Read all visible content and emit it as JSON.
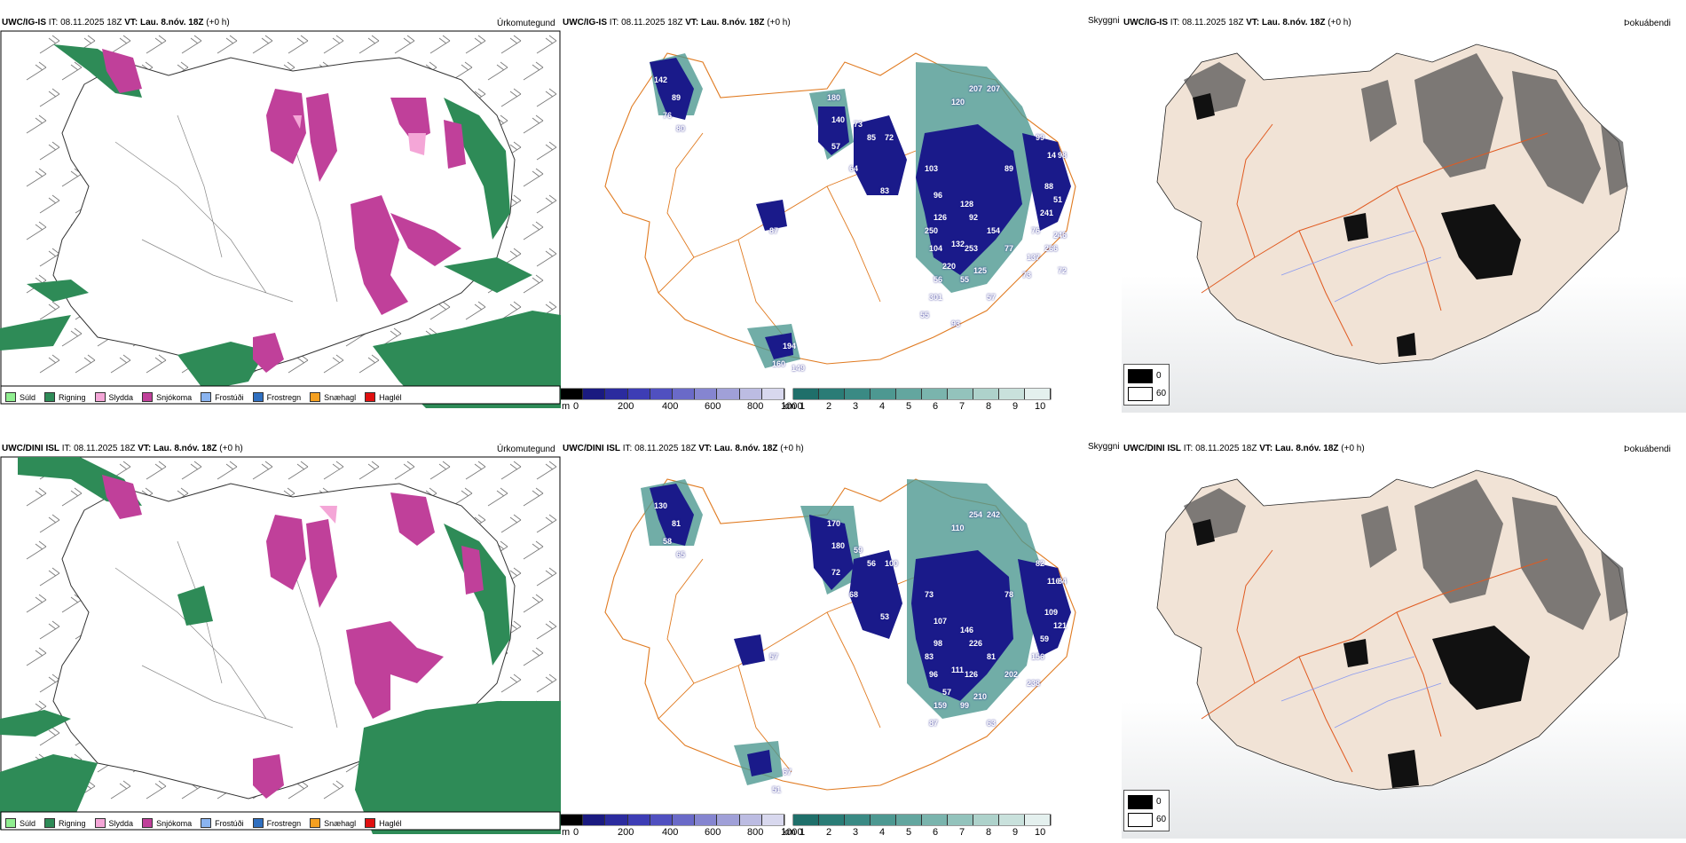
{
  "rows": [
    {
      "model": "UWC/IG-IS",
      "it": "IT: 08.11.2025 18Z",
      "vt_label": "VT:",
      "vt": "Lau. 8.nóv. 18Z",
      "offset": "(+0 h)"
    },
    {
      "model": "UWC/DINI ISL",
      "it": "IT: 08.11.2025 18Z",
      "vt_label": "VT:",
      "vt": "Lau. 8.nóv. 18Z",
      "offset": "(+0 h)"
    }
  ],
  "titles": {
    "precip": "Úrkomutegund",
    "visibility": "Skyggni",
    "fog": "Þokuábendi"
  },
  "precip_legend": [
    "Súld",
    "Rigning",
    "Slydda",
    "Snjókoma",
    "Frostúði",
    "Frostregn",
    "Snæhagl",
    "Haglél"
  ],
  "precip_colors": {
    "Súld": "#90ee90",
    "Rigning": "#2e8b57",
    "Slydda": "#f4a6d7",
    "Snjókoma": "#c0409a",
    "Frostúði": "#8ab4f0",
    "Frostregn": "#2f6fc0",
    "Snæhagl": "#f5a020",
    "Haglél": "#e01010"
  },
  "cloudbase_bar": {
    "unit": "m",
    "ticks": [
      "0",
      "200",
      "400",
      "600",
      "800",
      "1000"
    ],
    "colors": [
      "#000000",
      "#1a1a80",
      "#2b2b9e",
      "#3d3db5",
      "#5050c0",
      "#6a6ac8",
      "#8585d0",
      "#a0a0d8",
      "#bcbce2",
      "#d8d8ee"
    ]
  },
  "visibility_bar": {
    "unit": "km",
    "ticks": [
      "1",
      "2",
      "3",
      "4",
      "5",
      "6",
      "7",
      "8",
      "9",
      "10"
    ],
    "colors": [
      "#1f6f6a",
      "#2a7c76",
      "#3a8a84",
      "#4d9891",
      "#63a69f",
      "#7ab4ad",
      "#93c3bc",
      "#aed2cb",
      "#c9e1dc",
      "#e4f0ee"
    ]
  },
  "fog_legend": [
    "0",
    "60"
  ],
  "row1_labels": [
    "142",
    "89",
    "76",
    "80",
    "180",
    "140",
    "207",
    "207",
    "120",
    "73",
    "85",
    "57",
    "72",
    "99",
    "14",
    "64",
    "98",
    "103",
    "89",
    "83",
    "88",
    "96",
    "128",
    "241",
    "51",
    "92",
    "126",
    "250",
    "154",
    "76",
    "132",
    "104",
    "253",
    "77",
    "137",
    "87",
    "220",
    "125",
    "56",
    "55",
    "301",
    "57",
    "194",
    "160",
    "149",
    "246",
    "266",
    "73",
    "55",
    "93",
    "72"
  ],
  "row2_labels": [
    "130",
    "81",
    "58",
    "65",
    "170",
    "180",
    "254",
    "242",
    "110",
    "59",
    "56",
    "72",
    "100",
    "82",
    "116",
    "68",
    "84",
    "73",
    "78",
    "53",
    "109",
    "107",
    "146",
    "59",
    "121",
    "226",
    "98",
    "83",
    "81",
    "156",
    "111",
    "96",
    "126",
    "202",
    "238",
    "57",
    "57",
    "210",
    "159",
    "99",
    "87",
    "63",
    "67",
    "51"
  ]
}
